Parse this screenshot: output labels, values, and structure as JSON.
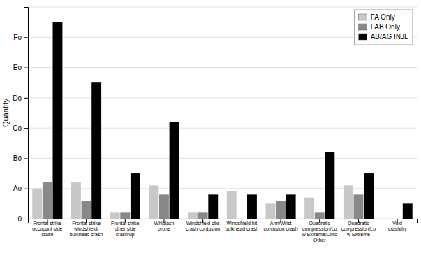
{
  "chart_data": {
    "type": "bar",
    "y_label": "Quantity",
    "categories": [
      "Frontal strike\noccupant side\ncrash",
      "Frontal strike\nwindshield/\nbulkhead crash",
      "Frontal strike\nother side\ncrash/up",
      "Whiplash\nprone",
      "Windshield obs\ncrash contusion",
      "Windshield hit\nbulkhead crash",
      "Arm/Wrist\ncontusion crash",
      "Quadratic\ncompression/Lo\nw Extreme/Onto\nOther",
      "Quadratic\ncompression/Lo\nw Extreme",
      "Void\ncrash/Inj"
    ],
    "series": [
      {
        "name": "FA Only",
        "color": "#c8c8c8",
        "values": [
          10,
          12,
          2,
          11,
          2,
          9,
          5,
          7,
          11,
          0
        ]
      },
      {
        "name": "LAB Only",
        "color": "#888888",
        "values": [
          12,
          6,
          2,
          8,
          2,
          0,
          6,
          2,
          8,
          0
        ]
      },
      {
        "name": "AB/AG INJL",
        "color": "#000000",
        "values": [
          65,
          45,
          15,
          32,
          8,
          8,
          8,
          22,
          15,
          5
        ]
      }
    ],
    "ylim": [
      0,
      70
    ],
    "yticks": [
      0,
      {
        "value": 10,
        "label": "Ao"
      },
      {
        "value": 20,
        "label": "Bo"
      },
      {
        "value": 30,
        "label": "Co"
      },
      {
        "value": 40,
        "label": "Do"
      },
      {
        "value": 50,
        "label": "Eo"
      },
      {
        "value": 60,
        "label": "Fo"
      },
      {
        "value": 70,
        "label": null
      }
    ],
    "grid": true,
    "legend": "top-right"
  }
}
